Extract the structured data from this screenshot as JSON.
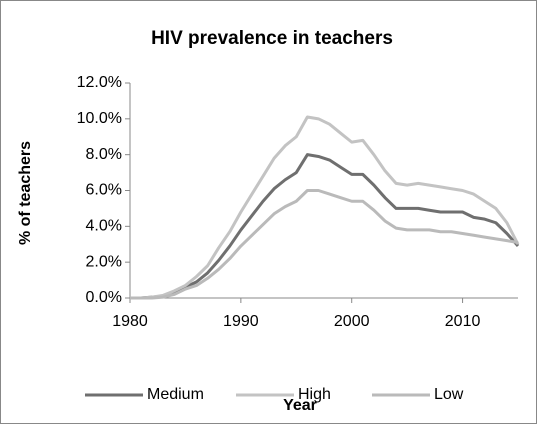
{
  "chart_data": {
    "type": "line",
    "title": "HIV prevalence in teachers",
    "x_label": "Year",
    "y_label": "% of teachers",
    "x": [
      1980,
      1981,
      1982,
      1983,
      1984,
      1985,
      1986,
      1987,
      1988,
      1989,
      1990,
      1991,
      1992,
      1993,
      1994,
      1995,
      1996,
      1997,
      1998,
      1999,
      2000,
      2001,
      2002,
      2003,
      2004,
      2005,
      2006,
      2007,
      2008,
      2009,
      2010,
      2011,
      2012,
      2013,
      2014,
      2015
    ],
    "series": [
      {
        "name": "Medium",
        "color": "#6f6f6f",
        "values": [
          0,
          0,
          0.05,
          0.1,
          0.3,
          0.6,
          0.9,
          1.4,
          2.1,
          2.9,
          3.8,
          4.6,
          5.4,
          6.1,
          6.6,
          7.0,
          8.0,
          7.9,
          7.7,
          7.3,
          6.9,
          6.9,
          6.3,
          5.6,
          5.0,
          5.0,
          5.0,
          4.9,
          4.8,
          4.8,
          4.8,
          4.5,
          4.4,
          4.2,
          3.6,
          2.9
        ]
      },
      {
        "name": "High",
        "color": "#c3c3c3",
        "values": [
          0,
          0,
          0.05,
          0.15,
          0.4,
          0.7,
          1.2,
          1.8,
          2.8,
          3.7,
          4.8,
          5.8,
          6.8,
          7.8,
          8.5,
          9.0,
          10.1,
          10.0,
          9.7,
          9.2,
          8.7,
          8.8,
          8.0,
          7.1,
          6.4,
          6.3,
          6.4,
          6.3,
          6.2,
          6.1,
          6.0,
          5.8,
          5.4,
          5.0,
          4.2,
          3.0
        ]
      },
      {
        "name": "Low",
        "color": "#bababa",
        "values": [
          0,
          0,
          0,
          0.05,
          0.2,
          0.5,
          0.7,
          1.1,
          1.6,
          2.2,
          2.9,
          3.5,
          4.1,
          4.7,
          5.1,
          5.4,
          6.0,
          6.0,
          5.8,
          5.6,
          5.4,
          5.4,
          4.9,
          4.3,
          3.9,
          3.8,
          3.8,
          3.8,
          3.7,
          3.7,
          3.6,
          3.5,
          3.4,
          3.3,
          3.2,
          3.1
        ]
      }
    ],
    "xlim": [
      1980,
      2015
    ],
    "xticks": [
      1980,
      1990,
      2000,
      2010
    ],
    "ylim": [
      0,
      12
    ],
    "yticks": [
      {
        "value": 0,
        "label": "0.0%"
      },
      {
        "value": 2,
        "label": "2.0%"
      },
      {
        "value": 4,
        "label": "4.0%"
      },
      {
        "value": 6,
        "label": "6.0%"
      },
      {
        "value": 8,
        "label": "8.0%"
      },
      {
        "value": 10,
        "label": "10.0%"
      },
      {
        "value": 12,
        "label": "12.0%"
      }
    ],
    "grid": false,
    "legend": "bottom"
  }
}
